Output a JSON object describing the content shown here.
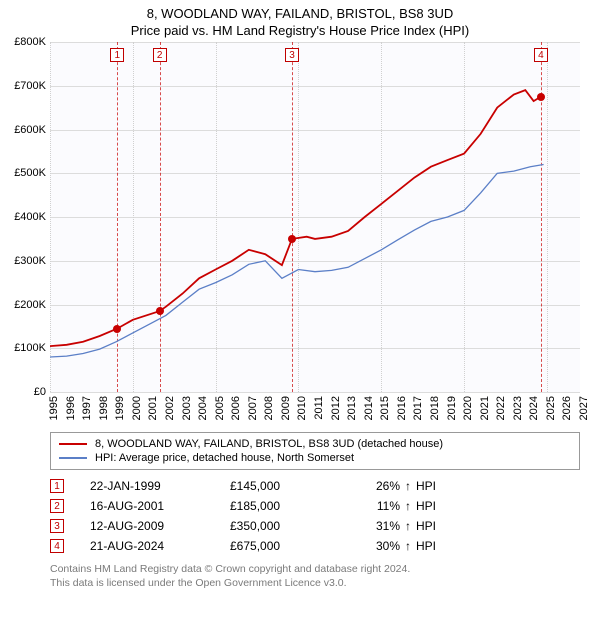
{
  "title_line1": "8, WOODLAND WAY, FAILAND, BRISTOL, BS8 3UD",
  "title_line2": "Price paid vs. HM Land Registry's House Price Index (HPI)",
  "chart": {
    "type": "line",
    "background_color": "#fbfbfe",
    "grid_color": "#dcdcdc",
    "x_domain": [
      1995,
      2027
    ],
    "y_domain": [
      0,
      800000
    ],
    "y_ticks": [
      {
        "v": 0,
        "label": "£0"
      },
      {
        "v": 100000,
        "label": "£100K"
      },
      {
        "v": 200000,
        "label": "£200K"
      },
      {
        "v": 300000,
        "label": "£300K"
      },
      {
        "v": 400000,
        "label": "£400K"
      },
      {
        "v": 500000,
        "label": "£500K"
      },
      {
        "v": 600000,
        "label": "£600K"
      },
      {
        "v": 700000,
        "label": "£700K"
      },
      {
        "v": 800000,
        "label": "£800K"
      }
    ],
    "x_ticks": [
      1995,
      1996,
      1997,
      1998,
      1999,
      2000,
      2001,
      2002,
      2003,
      2004,
      2005,
      2006,
      2007,
      2008,
      2009,
      2010,
      2011,
      2012,
      2013,
      2014,
      2015,
      2016,
      2017,
      2018,
      2019,
      2020,
      2021,
      2022,
      2023,
      2024,
      2025,
      2026,
      2027
    ],
    "x_gridlines": [
      1995,
      2000,
      2005,
      2010,
      2015,
      2020,
      2025
    ],
    "series": [
      {
        "name": "price_paid",
        "color": "#c80000",
        "width": 1.8,
        "points": [
          [
            1995,
            105000
          ],
          [
            1996,
            108000
          ],
          [
            1997,
            115000
          ],
          [
            1998,
            128000
          ],
          [
            1999.06,
            145000
          ],
          [
            2000,
            165000
          ],
          [
            2001.62,
            185000
          ],
          [
            2002,
            195000
          ],
          [
            2003,
            225000
          ],
          [
            2004,
            260000
          ],
          [
            2005,
            280000
          ],
          [
            2006,
            300000
          ],
          [
            2007,
            325000
          ],
          [
            2008,
            315000
          ],
          [
            2009,
            290000
          ],
          [
            2009.61,
            350000
          ],
          [
            2010.5,
            355000
          ],
          [
            2011,
            350000
          ],
          [
            2012,
            355000
          ],
          [
            2013,
            368000
          ],
          [
            2014,
            400000
          ],
          [
            2015,
            430000
          ],
          [
            2016,
            460000
          ],
          [
            2017,
            490000
          ],
          [
            2018,
            515000
          ],
          [
            2019,
            530000
          ],
          [
            2020,
            545000
          ],
          [
            2021,
            590000
          ],
          [
            2022,
            650000
          ],
          [
            2023,
            680000
          ],
          [
            2023.7,
            690000
          ],
          [
            2024.2,
            665000
          ],
          [
            2024.64,
            675000
          ]
        ]
      },
      {
        "name": "hpi",
        "color": "#5b7fc7",
        "width": 1.3,
        "points": [
          [
            1995,
            80000
          ],
          [
            1996,
            82000
          ],
          [
            1997,
            88000
          ],
          [
            1998,
            98000
          ],
          [
            1999,
            115000
          ],
          [
            2000,
            135000
          ],
          [
            2001,
            155000
          ],
          [
            2002,
            175000
          ],
          [
            2003,
            205000
          ],
          [
            2004,
            235000
          ],
          [
            2005,
            250000
          ],
          [
            2006,
            268000
          ],
          [
            2007,
            292000
          ],
          [
            2008,
            300000
          ],
          [
            2009,
            260000
          ],
          [
            2010,
            280000
          ],
          [
            2011,
            275000
          ],
          [
            2012,
            278000
          ],
          [
            2013,
            285000
          ],
          [
            2014,
            305000
          ],
          [
            2015,
            325000
          ],
          [
            2016,
            348000
          ],
          [
            2017,
            370000
          ],
          [
            2018,
            390000
          ],
          [
            2019,
            400000
          ],
          [
            2020,
            415000
          ],
          [
            2021,
            455000
          ],
          [
            2022,
            500000
          ],
          [
            2023,
            505000
          ],
          [
            2024,
            515000
          ],
          [
            2024.8,
            520000
          ]
        ]
      }
    ],
    "sale_markers": [
      {
        "n": "1",
        "x": 1999.06,
        "y": 145000
      },
      {
        "n": "2",
        "x": 2001.62,
        "y": 185000
      },
      {
        "n": "3",
        "x": 2009.61,
        "y": 350000
      },
      {
        "n": "4",
        "x": 2024.64,
        "y": 675000
      }
    ]
  },
  "legend": {
    "items": [
      {
        "color": "#c80000",
        "label": "8, WOODLAND WAY, FAILAND, BRISTOL, BS8 3UD (detached house)"
      },
      {
        "color": "#5b7fc7",
        "label": "HPI: Average price, detached house, North Somerset"
      }
    ]
  },
  "sales": [
    {
      "n": "1",
      "date": "22-JAN-1999",
      "price": "£145,000",
      "pct": "26%",
      "arrow": "↑",
      "hpi": "HPI"
    },
    {
      "n": "2",
      "date": "16-AUG-2001",
      "price": "£185,000",
      "pct": "11%",
      "arrow": "↑",
      "hpi": "HPI"
    },
    {
      "n": "3",
      "date": "12-AUG-2009",
      "price": "£350,000",
      "pct": "31%",
      "arrow": "↑",
      "hpi": "HPI"
    },
    {
      "n": "4",
      "date": "21-AUG-2024",
      "price": "£675,000",
      "pct": "30%",
      "arrow": "↑",
      "hpi": "HPI"
    }
  ],
  "footer_line1": "Contains HM Land Registry data © Crown copyright and database right 2024.",
  "footer_line2": "This data is licensed under the Open Government Licence v3.0."
}
